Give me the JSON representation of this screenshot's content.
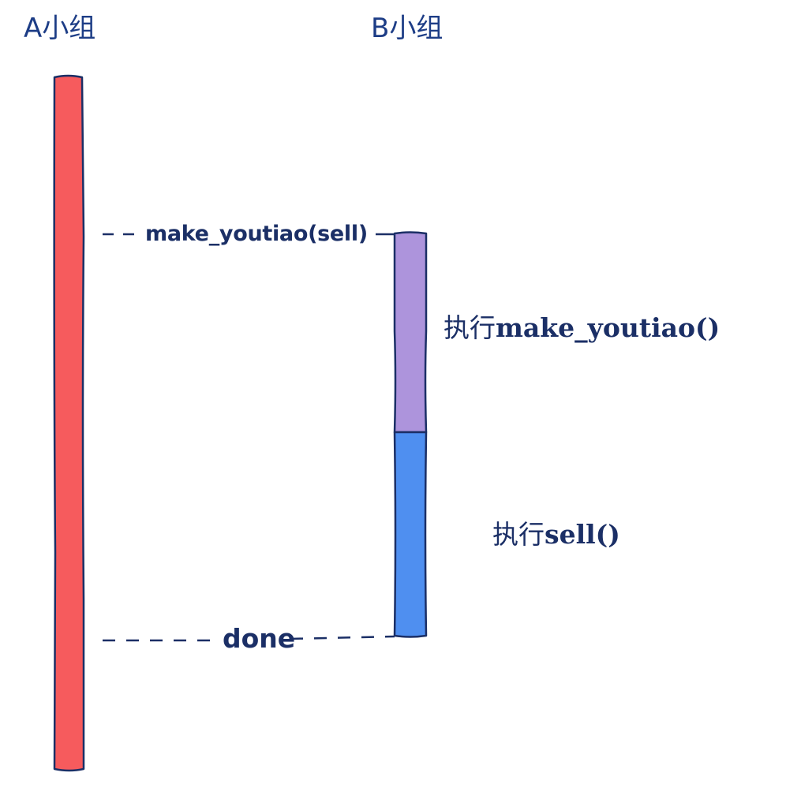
{
  "groups": {
    "a": {
      "label": "A小组"
    },
    "b": {
      "label": "B小组"
    }
  },
  "messages": {
    "call": "make_youtiao(sell)",
    "done": "done"
  },
  "executions": {
    "make": {
      "prefix": "执行",
      "func": "make_youtiao()"
    },
    "sell": {
      "prefix": "执行",
      "func": "sell()"
    }
  },
  "colors": {
    "group_a_bar": "#f65b5d",
    "make_exec_bar": "#ad94dc",
    "sell_exec_bar": "#4f8ff0",
    "outline": "#1b2f66",
    "text": "#1b2f66"
  }
}
